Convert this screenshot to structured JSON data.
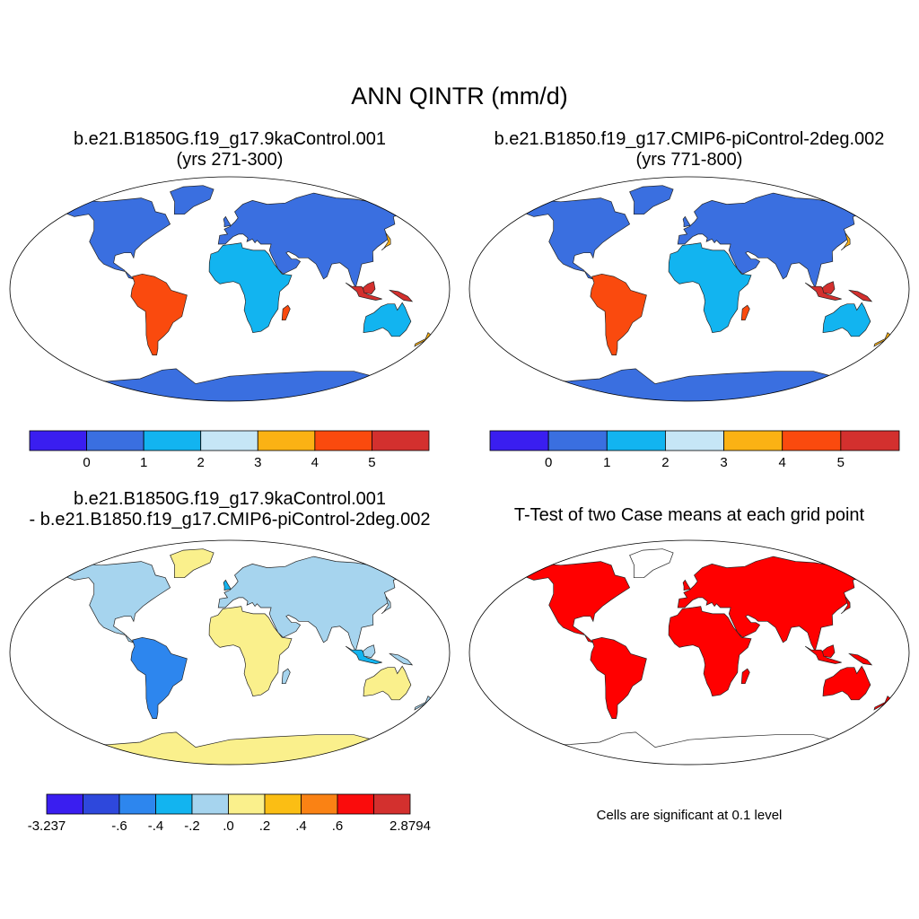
{
  "title": "ANN QINTR (mm/d)",
  "colors": {
    "ctrl": [
      "#3a1ef0",
      "#3a6fe0",
      "#12b4f0",
      "#c6e6f6",
      "#fbb214",
      "#fa4a0e",
      "#d3302e"
    ],
    "diff": [
      "#3a1ef0",
      "#2e48dc",
      "#2d86ee",
      "#12b4f0",
      "#a6d4ee",
      "#faf08c",
      "#fbbe14",
      "#fa8214",
      "#fa0c0c",
      "#d3302e"
    ],
    "signif": "#ff0000",
    "land_outline": "#222222"
  },
  "panels": {
    "case1": {
      "title": "b.e21.B1850G.f19_g17.9kaControl.001",
      "subtitle": "(yrs 271-300)",
      "colorbar_labels": [
        "0",
        "1",
        "2",
        "3",
        "4",
        "5"
      ]
    },
    "case2": {
      "title": "b.e21.B1850.f19_g17.CMIP6-piControl-2deg.002",
      "subtitle": "(yrs 771-800)",
      "colorbar_labels": [
        "0",
        "1",
        "2",
        "3",
        "4",
        "5"
      ]
    },
    "diff": {
      "title": "b.e21.B1850G.f19_g17.9kaControl.001",
      "subtitle": "- b.e21.B1850.f19_g17.CMIP6-piControl-2deg.002",
      "colorbar_labels": [
        "-3.237",
        "-.6",
        "-.4",
        "-.2",
        ".0",
        ".2",
        ".4",
        ".6",
        "2.8794"
      ]
    },
    "ttest": {
      "title": "T-Test of two Case means at each grid point",
      "note": "Cells are significant at 0.1 level"
    }
  }
}
